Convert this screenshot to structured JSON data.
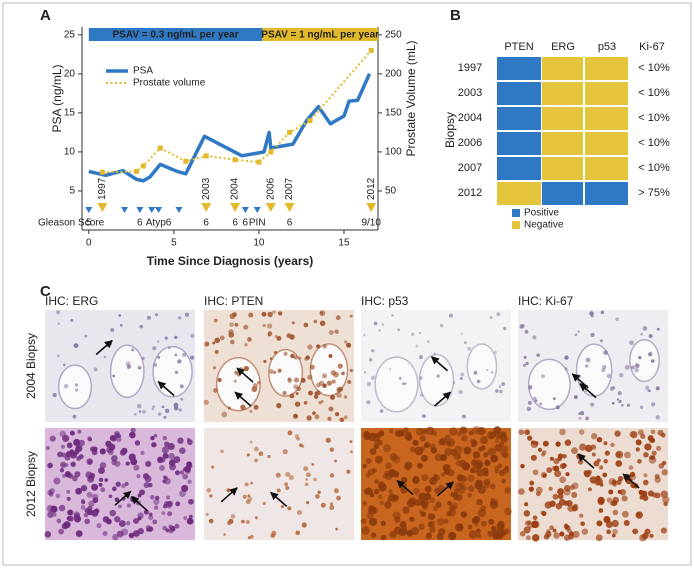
{
  "panels": [
    "A",
    "B",
    "C"
  ],
  "chart_data": {
    "type": "line",
    "x_label": "Time Since Diagnosis (years)",
    "y_label": "PSA (ng/mL)",
    "y2_label": "Prostate Volume (mL)",
    "xlim": [
      -0.4,
      17
    ],
    "xticks": [
      0,
      5,
      10,
      15
    ],
    "ylim": [
      0,
      26
    ],
    "yticks": [
      5,
      10,
      15,
      20,
      25
    ],
    "y2lim": [
      0,
      260
    ],
    "y2ticks": [
      50,
      100,
      150,
      200,
      250
    ],
    "series": [
      {
        "name": "PSA",
        "color": "#2f78c4",
        "x": [
          0,
          1,
          2,
          2.8,
          3.2,
          3.6,
          4.2,
          5.2,
          5.7,
          6.8,
          9,
          10.3,
          10.6,
          10.7,
          12,
          12.8,
          13.5,
          14.2,
          15,
          15.3,
          15.8,
          16.5
        ],
        "values": [
          7.5,
          7,
          7.6,
          6.5,
          6.3,
          6.8,
          8.4,
          7.5,
          7.2,
          12,
          9.5,
          10,
          12.5,
          10.5,
          11,
          14,
          15.8,
          13.6,
          14.6,
          16.5,
          16.6,
          20
        ]
      },
      {
        "name": "Prostate volume",
        "color": "#e3b92c",
        "axis": "y2",
        "x": [
          0.8,
          2.8,
          3.2,
          4.2,
          5.7,
          6.9,
          8.6,
          10,
          10.7,
          11.8,
          13,
          16.6
        ],
        "values": [
          74,
          75,
          82,
          105,
          88,
          95,
          90,
          87,
          100,
          125,
          140,
          230
        ]
      }
    ],
    "bands": [
      {
        "label": "PSAV = 0.3 ng/mL per year",
        "from": 0,
        "to": 10.2,
        "color": "#2f78c4"
      },
      {
        "label": "PSAV = 1 ng/mL per year",
        "from": 10.2,
        "to": 17,
        "color": "#e3b92c"
      }
    ],
    "gleason_label": "Gleason Score",
    "biopsies": [
      {
        "x": 0,
        "gleason": "5"
      },
      {
        "x": 0.8,
        "year": "1997"
      },
      {
        "x": 2.1
      },
      {
        "x": 3.0,
        "gleason": "6"
      },
      {
        "x": 3.7
      },
      {
        "x": 4.1,
        "gleason": "Atyp6"
      },
      {
        "x": 6.9,
        "year": "2003",
        "gleason": "6"
      },
      {
        "x": 5.3
      },
      {
        "x": 8.6,
        "year": "2004",
        "gleason": "6"
      },
      {
        "x": 9.2,
        "gleason": "6"
      },
      {
        "x": 9.9,
        "gleason": "PIN"
      },
      {
        "x": 10.7,
        "year": "2006"
      },
      {
        "x": 11.8,
        "year": "2007",
        "gleason": "6"
      },
      {
        "x": 16.6,
        "year": "2012",
        "gleason": "9/10"
      }
    ]
  },
  "biopsy_table": {
    "row_title": "Biopsy",
    "columns": [
      "PTEN",
      "ERG",
      "p53",
      "Ki-67"
    ],
    "rows": [
      {
        "year": "1997",
        "cells": [
          "Positive",
          "Negative",
          "Negative"
        ],
        "ki67": "< 10%"
      },
      {
        "year": "2003",
        "cells": [
          "Positive",
          "Negative",
          "Negative"
        ],
        "ki67": "< 10%"
      },
      {
        "year": "2004",
        "cells": [
          "Positive",
          "Negative",
          "Negative"
        ],
        "ki67": "< 10%"
      },
      {
        "year": "2006",
        "cells": [
          "Positive",
          "Negative",
          "Negative"
        ],
        "ki67": "< 10%"
      },
      {
        "year": "2007",
        "cells": [
          "Positive",
          "Negative",
          "Negative"
        ],
        "ki67": "< 10%"
      },
      {
        "year": "2012",
        "cells": [
          "Negative",
          "Positive",
          "Positive"
        ],
        "ki67": "> 75%"
      }
    ],
    "legend": [
      {
        "label": "Positive",
        "color": "#2f78c4"
      },
      {
        "label": "Negative",
        "color": "#e3c43a"
      }
    ]
  },
  "ihc": {
    "columns": [
      "IHC: ERG",
      "IHC: PTEN",
      "IHC: p53",
      "IHC: Ki-67"
    ],
    "rows": [
      "2004 Biopsy",
      "2012 Biopsy"
    ]
  }
}
